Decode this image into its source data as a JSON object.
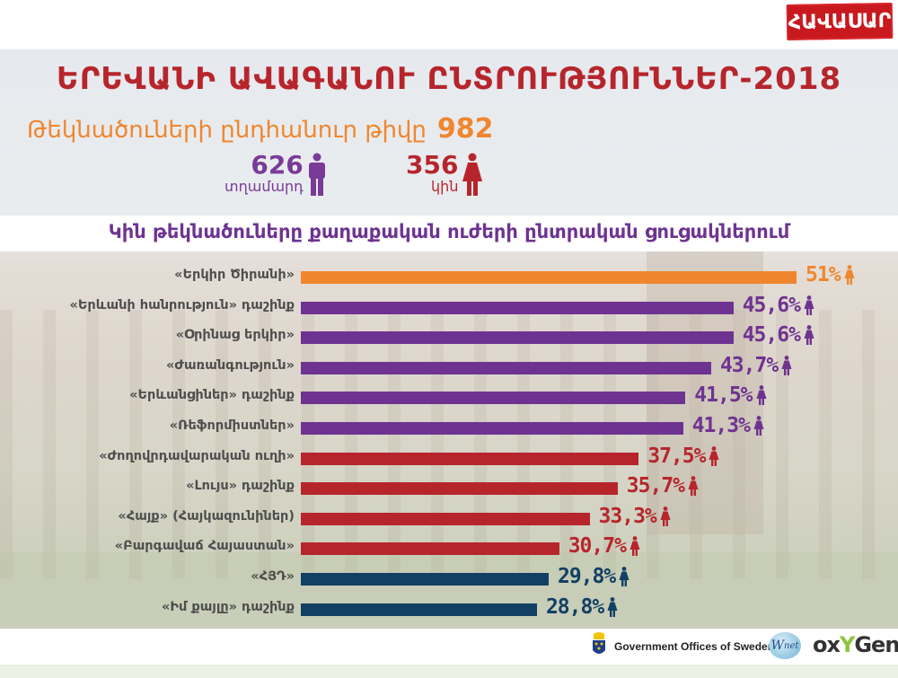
{
  "header": {
    "logo_text": "ՀԱՎԱՍԱՐ",
    "title": "ԵՐԵՎԱՆԻ ԱՎԱԳԱՆՈՒ ԸՆՏՐՈՒԹՅՈՒՆՆԵՐ-2018"
  },
  "totals": {
    "label": "Թեկնածուների ընդհանուր թիվը",
    "value": "982",
    "men": {
      "value": "626",
      "label": "տղամարդ",
      "icon": "man-icon",
      "color": "#7a3a97"
    },
    "women": {
      "value": "356",
      "label": "կին",
      "icon": "woman-icon",
      "color": "#b7252c"
    }
  },
  "subtitle": "Կին թեկնածուները քաղաքական ուժերի ընտրական ցուցակներում",
  "colors": {
    "orange": "#f0862e",
    "purple": "#6e3391",
    "red": "#b7252c",
    "navy": "#123f64",
    "title_red": "#b7252c"
  },
  "chart_data": {
    "type": "bar",
    "orientation": "horizontal",
    "title": "Կին թեկնածուները քաղաքական ուժերի ընտրական ցուցակներում",
    "xlabel": "",
    "ylabel": "",
    "unit": "%",
    "grid": false,
    "legend": null,
    "categories": [
      "«Երկիր Ծիրանի»",
      "«Երևանի հանրություն» դաշինք",
      "«Օրինաց երկիր»",
      "«Ժառանգություն»",
      "«Երևանցիներ» դաշինք",
      "«Ռեֆորմիստներ»",
      "«Ժողովրդավարական ուղի»",
      "«Լույս» դաշինք",
      "«Հայք» (Հայկազունիներ)",
      "«Բարգավաճ Հայաստան»",
      "«ՀՅԴ»",
      "«Իմ քայլը» դաշինք"
    ],
    "values": [
      51,
      45.6,
      45.6,
      43.7,
      41.5,
      41.3,
      37.5,
      35.7,
      33.3,
      30.7,
      29.8,
      28.8
    ],
    "value_labels": [
      "51%",
      "45,6%",
      "45,6%",
      "43,7%",
      "41,5%",
      "41,3%",
      "37,5%",
      "35,7%",
      "33,3%",
      "30,7%",
      "29,8%",
      "28,8%"
    ],
    "bar_colors": [
      "#f0862e",
      "#6e3391",
      "#6e3391",
      "#6e3391",
      "#6e3391",
      "#6e3391",
      "#b7252c",
      "#b7252c",
      "#b7252c",
      "#b7252c",
      "#123f64",
      "#123f64"
    ]
  },
  "footer": {
    "sponsor_1": "Government Offices of Sweden",
    "sponsor_2": "net",
    "sponsor_2_prefix": "W",
    "sponsor_3_a": "ox",
    "sponsor_3_b": "Y",
    "sponsor_3_c": "Gen"
  }
}
